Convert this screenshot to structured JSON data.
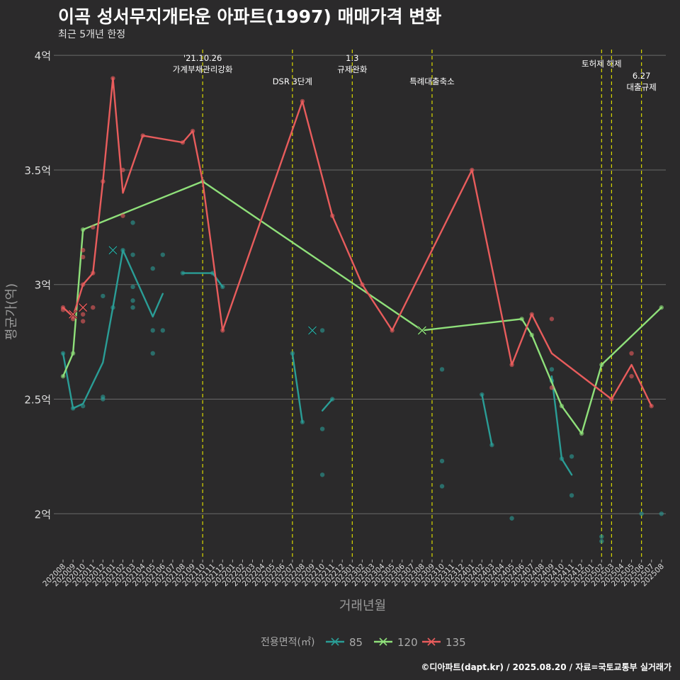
{
  "header": {
    "title": "이곡 성서무지개타운 아파트(1997) 매매가격 변화",
    "subtitle": "최근 5개년 한정"
  },
  "caption": "©디아파트(dapt.kr) / 2025.08.20 / 자료=국토교통부 실거래가",
  "colors": {
    "background": "#2b2a2b",
    "grid": "#6a6a6a",
    "vline": "#d8d800",
    "s85": "#2a9d96",
    "s120": "#8fe07a",
    "s135": "#e85c5c"
  },
  "chart_data": {
    "type": "line",
    "xlabel": "거래년월",
    "ylabel": "평균가(억)",
    "ylim": [
      1.8,
      4.05
    ],
    "yticks": [
      {
        "value": 2.0,
        "label": "2억"
      },
      {
        "value": 2.5,
        "label": "2.5억"
      },
      {
        "value": 3.0,
        "label": "3억"
      },
      {
        "value": 3.5,
        "label": "3.5억"
      },
      {
        "value": 4.0,
        "label": "4억"
      }
    ],
    "x_categories": [
      "202008",
      "202009",
      "202010",
      "202011",
      "202012",
      "202101",
      "202102",
      "202103",
      "202104",
      "202105",
      "202106",
      "202107",
      "202108",
      "202109",
      "202110",
      "202111",
      "202112",
      "202201",
      "202202",
      "202203",
      "202204",
      "202205",
      "202206",
      "202207",
      "202208",
      "202209",
      "202210",
      "202211",
      "202212",
      "202301",
      "202302",
      "202303",
      "202304",
      "202305",
      "202306",
      "202307",
      "202308",
      "202309",
      "202310",
      "202311",
      "202312",
      "202401",
      "202402",
      "202403",
      "202404",
      "202405",
      "202406",
      "202407",
      "202408",
      "202409",
      "202410",
      "202411",
      "202412",
      "202501",
      "202502",
      "202503",
      "202504",
      "202505",
      "202506",
      "202507",
      "202508"
    ],
    "legend": {
      "title": "전용면적(㎡)",
      "position": "bottom"
    },
    "events": [
      {
        "x": "202110",
        "label": "'21.10.26\n가계부채관리강화",
        "label_level": 0
      },
      {
        "x": "202207",
        "label": "DSR 3단계",
        "label_level": 1
      },
      {
        "x": "202301",
        "label": "1.3\n규제완화",
        "label_level": 0
      },
      {
        "x": "202309",
        "label": "특례대출축소",
        "label_level": 1
      },
      {
        "x": "202502",
        "label": "토허제 해제",
        "label_level": 0
      },
      {
        "x": "202503",
        "label": "",
        "label_level": 0
      },
      {
        "x": "202506",
        "label": "6.27\n대출규제",
        "label_level": 1
      }
    ],
    "series": [
      {
        "name": "85",
        "color": "#2a9d96",
        "line_segments": [
          [
            [
              "202008",
              2.7
            ],
            [
              "202009",
              2.46
            ],
            [
              "202010",
              2.48
            ],
            [
              "202012",
              2.66
            ],
            [
              "202101",
              2.9
            ],
            [
              "202102",
              3.15
            ],
            [
              "202105",
              2.86
            ],
            [
              "202106",
              2.96
            ]
          ],
          [
            [
              "202108",
              3.05
            ],
            [
              "202110",
              3.05
            ],
            [
              "202111",
              3.05
            ],
            [
              "202112",
              2.99
            ]
          ],
          [
            [
              "202207",
              2.7
            ],
            [
              "202208",
              2.4
            ]
          ],
          [
            [
              "202210",
              2.45
            ],
            [
              "202211",
              2.5
            ]
          ],
          [
            [
              "202402",
              2.52
            ],
            [
              "202403",
              2.3
            ]
          ],
          [
            [
              "202409",
              2.6
            ],
            [
              "202410",
              2.24
            ],
            [
              "202411",
              2.17
            ]
          ]
        ],
        "points": [
          [
            "202008",
            2.7
          ],
          [
            "202009",
            2.46
          ],
          [
            "202010",
            2.47
          ],
          [
            "202012",
            2.5
          ],
          [
            "202012",
            2.51
          ],
          [
            "202012",
            2.95
          ],
          [
            "202101",
            2.9
          ],
          [
            "202102",
            3.15
          ],
          [
            "202103",
            3.27
          ],
          [
            "202103",
            3.13
          ],
          [
            "202103",
            2.99
          ],
          [
            "202103",
            2.93
          ],
          [
            "202103",
            2.9
          ],
          [
            "202105",
            3.07
          ],
          [
            "202105",
            2.8
          ],
          [
            "202105",
            2.7
          ],
          [
            "202106",
            3.13
          ],
          [
            "202106",
            2.8
          ],
          [
            "202108",
            3.05
          ],
          [
            "202111",
            3.05
          ],
          [
            "202112",
            2.99
          ],
          [
            "202207",
            2.7
          ],
          [
            "202208",
            2.4
          ],
          [
            "202210",
            2.8
          ],
          [
            "202210",
            2.37
          ],
          [
            "202210",
            2.17
          ],
          [
            "202211",
            2.5
          ],
          [
            "202310",
            2.63
          ],
          [
            "202310",
            2.23
          ],
          [
            "202310",
            2.12
          ],
          [
            "202402",
            2.52
          ],
          [
            "202403",
            2.3
          ],
          [
            "202405",
            1.98
          ],
          [
            "202409",
            2.63
          ],
          [
            "202409",
            2.58
          ],
          [
            "202410",
            2.24
          ],
          [
            "202411",
            2.25
          ],
          [
            "202411",
            2.08
          ],
          [
            "202502",
            1.9
          ],
          [
            "202502",
            1.88
          ],
          [
            "202506",
            2.0
          ],
          [
            "202508",
            2.0
          ]
        ],
        "markers": [
          [
            "202101",
            3.15
          ],
          [
            "202209",
            2.8
          ]
        ]
      },
      {
        "name": "120",
        "color": "#8fe07a",
        "line_segments": [
          [
            [
              "202008",
              2.6
            ],
            [
              "202009",
              2.7
            ],
            [
              "202010",
              3.24
            ],
            [
              "202110",
              3.45
            ],
            [
              "202308",
              2.8
            ],
            [
              "202406",
              2.85
            ],
            [
              "202407",
              2.78
            ],
            [
              "202410",
              2.47
            ],
            [
              "202412",
              2.35
            ],
            [
              "202502",
              2.65
            ],
            [
              "202508",
              2.9
            ]
          ]
        ],
        "points": [
          [
            "202008",
            2.6
          ],
          [
            "202009",
            2.7
          ],
          [
            "202010",
            3.24
          ],
          [
            "202110",
            3.45
          ],
          [
            "202406",
            2.85
          ],
          [
            "202407",
            2.78
          ],
          [
            "202410",
            2.47
          ],
          [
            "202412",
            2.35
          ],
          [
            "202502",
            2.65
          ],
          [
            "202508",
            2.9
          ]
        ],
        "markers": [
          [
            "202308",
            2.8
          ]
        ]
      },
      {
        "name": "135",
        "color": "#e85c5c",
        "line_segments": [
          [
            [
              "202008",
              2.9
            ],
            [
              "202009",
              2.86
            ],
            [
              "202010",
              3.0
            ],
            [
              "202011",
              3.05
            ],
            [
              "202012",
              3.45
            ],
            [
              "202101",
              3.9
            ],
            [
              "202102",
              3.4
            ],
            [
              "202104",
              3.65
            ],
            [
              "202108",
              3.62
            ],
            [
              "202109",
              3.67
            ],
            [
              "202110",
              3.45
            ],
            [
              "202112",
              2.8
            ],
            [
              "202208",
              3.8
            ],
            [
              "202211",
              3.3
            ],
            [
              "202302",
              3.0
            ],
            [
              "202305",
              2.8
            ],
            [
              "202401",
              3.5
            ],
            [
              "202405",
              2.65
            ],
            [
              "202407",
              2.87
            ],
            [
              "202409",
              2.7
            ],
            [
              "202503",
              2.5
            ],
            [
              "202505",
              2.65
            ],
            [
              "202507",
              2.47
            ]
          ]
        ],
        "points": [
          [
            "202008",
            2.9
          ],
          [
            "202008",
            2.89
          ],
          [
            "202009",
            2.86
          ],
          [
            "202009",
            2.85
          ],
          [
            "202010",
            3.15
          ],
          [
            "202010",
            3.12
          ],
          [
            "202010",
            3.0
          ],
          [
            "202010",
            2.87
          ],
          [
            "202010",
            2.84
          ],
          [
            "202011",
            3.25
          ],
          [
            "202011",
            3.05
          ],
          [
            "202011",
            2.9
          ],
          [
            "202012",
            3.45
          ],
          [
            "202101",
            3.9
          ],
          [
            "202102",
            3.5
          ],
          [
            "202102",
            3.3
          ],
          [
            "202104",
            3.65
          ],
          [
            "202108",
            3.62
          ],
          [
            "202109",
            3.67
          ],
          [
            "202112",
            2.8
          ],
          [
            "202208",
            3.8
          ],
          [
            "202211",
            3.3
          ],
          [
            "202302",
            3.0
          ],
          [
            "202305",
            2.8
          ],
          [
            "202401",
            3.5
          ],
          [
            "202405",
            2.65
          ],
          [
            "202407",
            2.87
          ],
          [
            "202409",
            2.85
          ],
          [
            "202409",
            2.55
          ],
          [
            "202503",
            2.5
          ],
          [
            "202505",
            2.7
          ],
          [
            "202505",
            2.6
          ],
          [
            "202507",
            2.47
          ]
        ],
        "markers": [
          [
            "202009",
            2.87
          ],
          [
            "202010",
            2.9
          ]
        ]
      }
    ]
  }
}
